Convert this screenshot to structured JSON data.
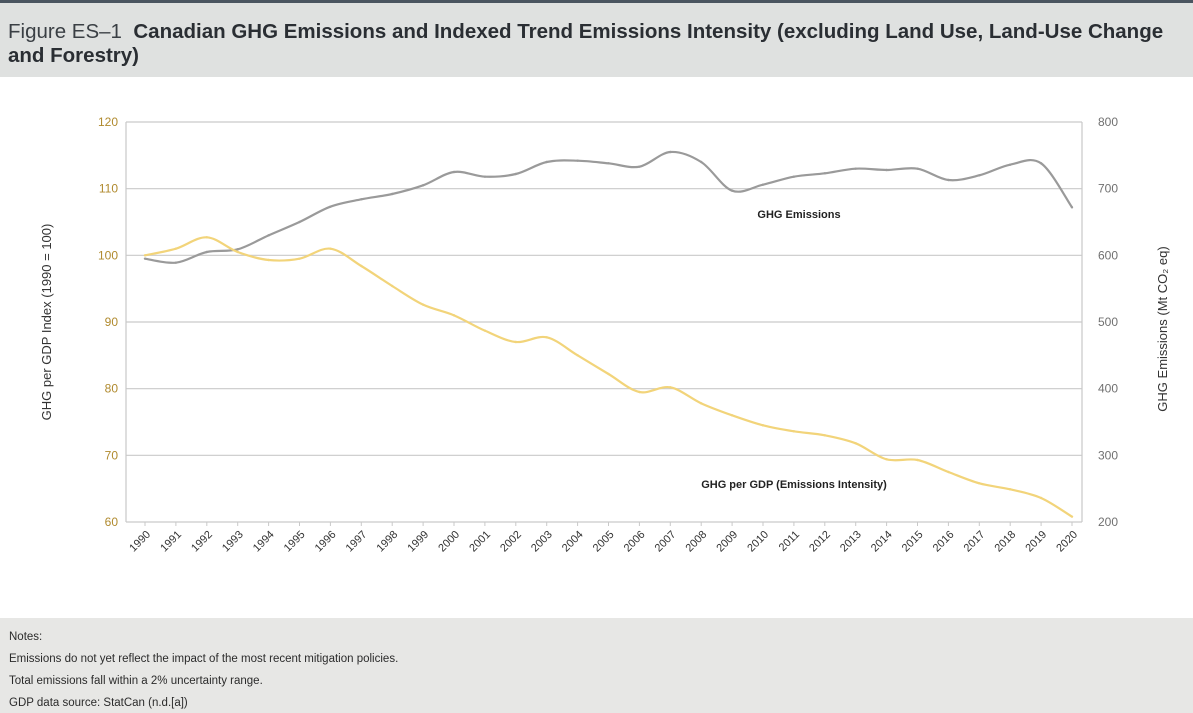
{
  "figure": {
    "label": "Figure ES–1",
    "title_line1": "Canadian GHG Emissions and Indexed Trend Emissions Intensity (excluding Land Use, Land-Use Change",
    "title_line2": "and Forestry)"
  },
  "notes": {
    "heading": "Notes:",
    "lines": [
      "Emissions do not yet reflect the impact of the most recent mitigation policies.",
      "Total emissions fall within a 2% uncertainty range.",
      "GDP data source: StatCan (n.d.[a])"
    ]
  },
  "colors": {
    "emissions_line": "#9a9a9a",
    "intensity_line": "#f2d47a",
    "left_axis_text": "#b08a2e",
    "right_axis_text": "#707070",
    "gridline": "#c9c9c9"
  },
  "chart_data": {
    "type": "line",
    "categories": [
      "1990",
      "1991",
      "1992",
      "1993",
      "1994",
      "1995",
      "1996",
      "1997",
      "1998",
      "1999",
      "2000",
      "2001",
      "2002",
      "2003",
      "2004",
      "2005",
      "2006",
      "2007",
      "2008",
      "2009",
      "2010",
      "2011",
      "2012",
      "2013",
      "2014",
      "2015",
      "2016",
      "2017",
      "2018",
      "2019",
      "2020"
    ],
    "ylabel_left": "GHG per GDP Index (1990 = 100)",
    "ylabel_right": "GHG Emissions (Mt CO₂ eq)",
    "ylim_left": [
      60,
      120
    ],
    "ylim_right": [
      200,
      800
    ],
    "yticks_left": [
      "60",
      "70",
      "80",
      "90",
      "100",
      "110",
      "120"
    ],
    "yticks_right": [
      "200",
      "300",
      "400",
      "500",
      "600",
      "700",
      "800"
    ],
    "grid": true,
    "series": [
      {
        "name": "GHG Emissions",
        "axis": "right",
        "values": [
          595,
          589,
          605,
          609,
          630,
          650,
          673,
          684,
          692,
          705,
          725,
          718,
          722,
          740,
          742,
          738,
          733,
          755,
          740,
          697,
          706,
          718,
          723,
          730,
          728,
          730,
          713,
          720,
          736,
          738,
          672
        ]
      },
      {
        "name": "GHG per GDP (Emissions Intensity)",
        "axis": "left",
        "values": [
          100,
          101,
          102.7,
          100.5,
          99.3,
          99.5,
          101,
          98.4,
          95.4,
          92.6,
          91,
          88.7,
          87,
          87.7,
          85,
          82.2,
          79.5,
          80.2,
          77.8,
          76,
          74.5,
          73.6,
          73,
          71.8,
          69.4,
          69.3,
          67.5,
          65.8,
          64.9,
          63.6,
          60.8
        ]
      }
    ]
  }
}
